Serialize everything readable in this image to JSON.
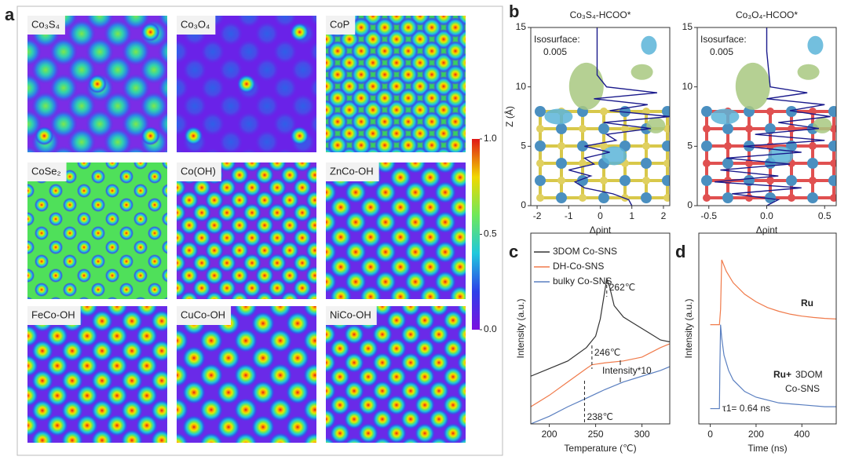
{
  "panel_labels": [
    "a",
    "b",
    "c",
    "d"
  ],
  "panel_a": {
    "maps": [
      "Co₃S₄",
      "Co₃O₄",
      "CoP",
      "CoSe₂",
      "Co(OH)",
      "ZnCo-OH",
      "FeCo-OH",
      "CuCo-OH",
      "NiCo-OH"
    ],
    "colorbar": {
      "lim": [
        0,
        1
      ],
      "ticks": [
        {
          "value": 0,
          "label": "0.0"
        },
        {
          "value": 0.5,
          "label": "0.5"
        },
        {
          "value": 1,
          "label": "1.0"
        }
      ]
    }
  },
  "chart_data": [
    {
      "type": "profile",
      "title": "Co₃S₄-HCOO*",
      "annotation": [
        "Isosurface:",
        "0.005"
      ],
      "xlabel": "Δρint",
      "ylabel": "Z (Å)",
      "xlim": [
        -2.2,
        2.2
      ],
      "xticks": [
        -2,
        -1,
        0,
        1,
        2
      ],
      "ylim": [
        0,
        15
      ],
      "yticks": [
        0,
        5,
        10,
        15
      ],
      "z": [
        15,
        13,
        11,
        10,
        9.5,
        9,
        8.5,
        8,
        7.5,
        7,
        6.5,
        6,
        5.5,
        5,
        4.5,
        4,
        3.5,
        3,
        2.5,
        2,
        1.5,
        1,
        0.5,
        0
      ],
      "series": [
        {
          "color": "#1a1a8c",
          "values": [
            -0.1,
            -0.1,
            -0.1,
            0.2,
            1.8,
            -0.2,
            1.5,
            0.3,
            2.2,
            0.1,
            1.6,
            0.2,
            0.5,
            -0.5,
            0.3,
            -0.5,
            -0.2,
            -1.0,
            -0.3,
            -0.8,
            -0.5,
            0.4,
            0.9,
            1.0
          ]
        }
      ]
    },
    {
      "type": "profile",
      "title": "Co₃O₄-HCOO*",
      "annotation": [
        "Isosurface:",
        "0.005"
      ],
      "xlabel": "Δρint",
      "xlim": [
        -0.6,
        0.6
      ],
      "xticks": [
        -0.5,
        {
          "value": 0,
          "label": "0.0"
        },
        0.5
      ],
      "ylim": [
        0,
        15
      ],
      "yticks": [
        0,
        5,
        10,
        15
      ],
      "z": [
        15,
        13,
        11,
        10,
        9.5,
        9,
        8.5,
        8,
        7.5,
        7,
        6.5,
        6,
        5.5,
        5,
        4.5,
        4,
        3.5,
        3,
        2.5,
        2,
        1.5,
        1,
        0.5,
        0
      ],
      "series": [
        {
          "color": "#1a1a8c",
          "values": [
            0,
            0,
            0.02,
            0.03,
            0.35,
            0,
            0.5,
            0.2,
            0.55,
            0.1,
            0.45,
            -0.1,
            0.5,
            -0.2,
            0.3,
            -0.35,
            0.2,
            -0.4,
            0.1,
            -0.45,
            0.3,
            -0.3,
            0.1,
            0
          ]
        }
      ]
    },
    {
      "type": "line",
      "xlabel": "Temperature (℃)",
      "ylabel": "Intensity (a.u.)",
      "xlim": [
        180,
        330
      ],
      "xticks": [
        200,
        250,
        300
      ],
      "ylim": [
        0,
        100
      ],
      "series": [
        {
          "name": "3DOM Co-SNS",
          "color": "#333333",
          "x": [
            180,
            200,
            220,
            240,
            250,
            255,
            260,
            262,
            265,
            270,
            280,
            290,
            300,
            310,
            320,
            330
          ],
          "values": [
            25,
            29,
            33,
            40,
            46,
            55,
            70,
            76,
            72,
            62,
            56,
            53,
            50,
            47,
            44,
            43
          ]
        },
        {
          "name": "DH-Co-SNS",
          "color": "#f07a4a",
          "x": [
            180,
            200,
            220,
            240,
            246,
            260,
            280,
            300,
            320,
            330
          ],
          "values": [
            9,
            15,
            22,
            29,
            31,
            32,
            33,
            35,
            40,
            42
          ]
        },
        {
          "name": "bulky Co-SNS",
          "color": "#5a7fc0",
          "x": [
            180,
            200,
            220,
            238,
            260,
            280,
            300,
            320,
            330
          ],
          "values": [
            0,
            4,
            9,
            13,
            18,
            22,
            25,
            28,
            30
          ]
        }
      ],
      "annotations": [
        {
          "text": "262℃",
          "x": 262
        },
        {
          "text": "246℃",
          "x": 246
        },
        {
          "text": "238℃",
          "x": 238
        },
        {
          "text": "Intensity*10"
        }
      ]
    },
    {
      "type": "line",
      "xlabel": "Time (ns)",
      "ylabel": "Intensity (a.u.)",
      "xlim": [
        -50,
        550
      ],
      "xticks": [
        0,
        200,
        400
      ],
      "ylim": [
        0,
        100
      ],
      "series": [
        {
          "color": "#f07a4a",
          "x": [
            0,
            40,
            45,
            50,
            70,
            100,
            150,
            200,
            250,
            300,
            350,
            400,
            450,
            500,
            550
          ],
          "values": [
            52,
            52,
            60,
            86,
            80,
            74,
            68,
            64,
            61,
            59,
            57.5,
            56.5,
            55.8,
            55.3,
            55
          ]
        },
        {
          "color": "#5a7fc0",
          "x": [
            0,
            40,
            42,
            45,
            50,
            60,
            80,
            100,
            150,
            200,
            300,
            400,
            500,
            550
          ],
          "values": [
            8,
            8,
            30,
            52,
            45,
            36,
            28,
            23,
            17,
            14,
            11,
            10,
            9,
            9
          ]
        }
      ],
      "annotations": [
        {
          "text": "Ru"
        },
        {
          "text": "Ru+"
        },
        {
          "text": "3DOM"
        },
        {
          "text": "Co-SNS"
        },
        {
          "text": "τ1= 0.64 ns"
        }
      ]
    }
  ]
}
